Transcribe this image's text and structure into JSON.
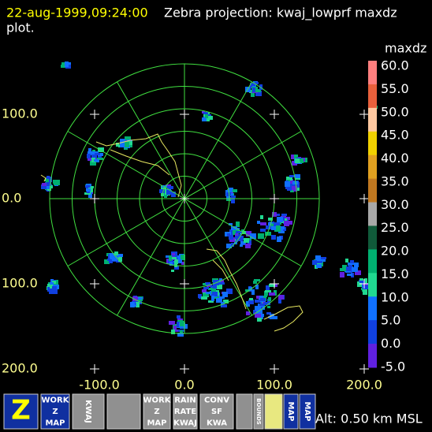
{
  "header": {
    "timestamp": "22-aug-1999,09:24:00",
    "title": "Zebra projection: kwaj_lowprf maxdz",
    "title_cont": "plot."
  },
  "plot": {
    "y_labels": [
      "100.0",
      "0.0",
      "100.0",
      "200.0"
    ],
    "x_labels": [
      "-100.0",
      "0.0",
      "100.0",
      "200.0"
    ]
  },
  "colorbar": {
    "field": "maxdz",
    "labels": [
      "60.0",
      "55.0",
      "50.0",
      "45.0",
      "40.0",
      "35.0",
      "30.0",
      "25.0",
      "20.0",
      "15.0",
      "10.0",
      "5.0",
      "0.0",
      "-5.0"
    ],
    "colors": [
      "#ff7f7f",
      "#e8603c",
      "#ffc8a0",
      "#f0d000",
      "#e0a020",
      "#c07820",
      "#a8a8a8",
      "#105a3a",
      "#00b070",
      "#20d890",
      "#1070ff",
      "#1040e0",
      "#6020e0"
    ]
  },
  "toolbar": {
    "buttons": [
      {
        "lines": [
          "Z"
        ]
      },
      {
        "lines": [
          "WORK",
          "Z",
          "MAP"
        ]
      },
      {
        "lines": [
          "KWAJ"
        ]
      },
      {
        "lines": [
          "WORK",
          "Z",
          "MAP"
        ]
      },
      {
        "lines": [
          "RAIN",
          "RATE",
          "KWAJ"
        ]
      },
      {
        "lines": [
          "CONV",
          "SF",
          "KWA"
        ]
      },
      {
        "lines": [
          "BOUNDS"
        ]
      },
      {
        "lines": [
          "MAP"
        ]
      },
      {
        "lines": [
          "MAP"
        ]
      }
    ]
  },
  "status": {
    "altitude": "Alt: 0.50 km MSL"
  }
}
